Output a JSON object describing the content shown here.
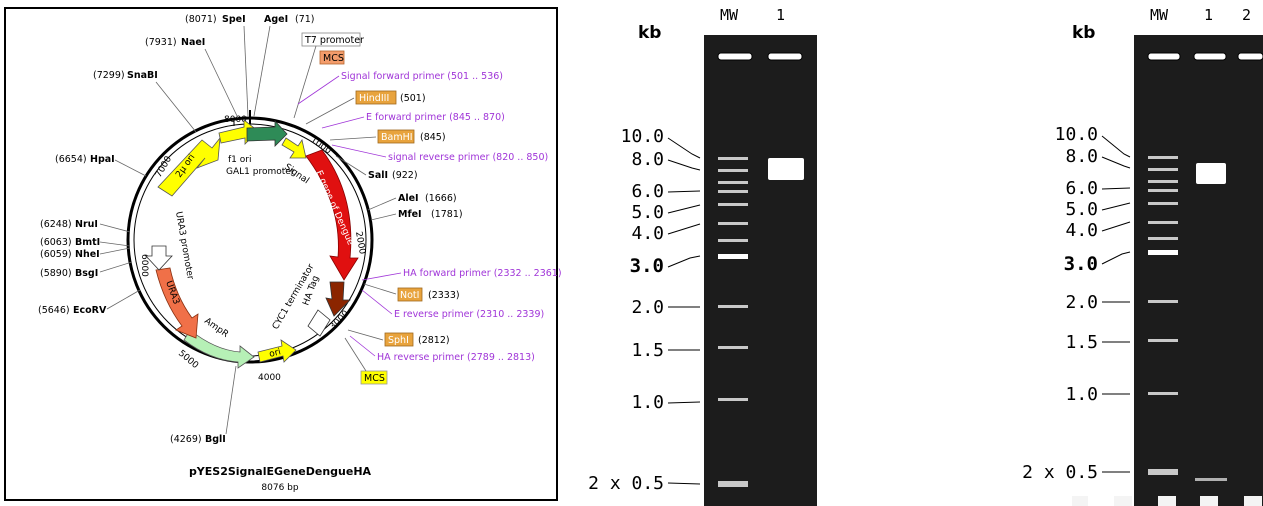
{
  "plasmid": {
    "name": "pYES2SignalEGeneDengueHA",
    "size": "8076 bp",
    "ticks": [
      "8000",
      "1000",
      "2000",
      "3000",
      "4000",
      "5000",
      "6000",
      "7000"
    ],
    "sites": [
      {
        "pos": "(8071)",
        "name": "SpeI"
      },
      {
        "pos": "(71)",
        "name": "AgeI"
      },
      {
        "pos": "(7931)",
        "name": "NaeI"
      },
      {
        "pos": "(7299)",
        "name": "SnaBI"
      },
      {
        "pos": "(6654)",
        "name": "HpaI"
      },
      {
        "pos": "(6248)",
        "name": "NruI"
      },
      {
        "pos": "(6063)",
        "name": "BmtI"
      },
      {
        "pos": "(6059)",
        "name": "NheI"
      },
      {
        "pos": "(5890)",
        "name": "BsgI"
      },
      {
        "pos": "(5646)",
        "name": "EcoRV"
      },
      {
        "pos": "(4269)",
        "name": "BglI"
      },
      {
        "name": "SalI",
        "pos": "(922)"
      },
      {
        "name": "AleI",
        "pos": "(1666)"
      },
      {
        "name": "MfeI",
        "pos": "(1781)"
      }
    ],
    "boxed_sites": [
      {
        "name": "HindIII",
        "pos": "(501)"
      },
      {
        "name": "BamHI",
        "pos": "(845)"
      },
      {
        "name": "NotI",
        "pos": "(2333)"
      },
      {
        "name": "SphI",
        "pos": "(2812)"
      }
    ],
    "tags": {
      "t7": "T7 promoter",
      "mcs1": "MCS",
      "mcs2": "MCS"
    },
    "primers": [
      "Signal forward primer  (501 .. 536)",
      "E forward primer  (845 .. 870)",
      "signal reverse primer  (820 .. 850)",
      "HA forward primer  (2332 .. 2361)",
      "E reverse primer  (2310 .. 2339)",
      "HA reverse primer  (2789 .. 2813)"
    ],
    "features": {
      "f1_ori": "f1 ori",
      "gal1": "GAL1 promoter",
      "signal": "Signal",
      "e_gene": "E gene of Dengue",
      "ha_tag": "HA Tag",
      "cyc1": "CYC1 terminator",
      "ura3_promoter": "URA3 promoter",
      "ura3": "URA3",
      "ampr": "AmpR",
      "ori": "ori",
      "two_mu": "2μ ori"
    }
  },
  "gel1": {
    "unit": "kb",
    "lanes": [
      "MW",
      "1"
    ],
    "markers": [
      "10.0",
      "8.0",
      "6.0",
      "5.0",
      "4.0",
      "3.0",
      "2.0",
      "1.5",
      "1.0",
      "2 x 0.5"
    ]
  },
  "gel2": {
    "unit": "kb",
    "lanes": [
      "MW",
      "1",
      "2"
    ],
    "markers": [
      "10.0",
      "8.0",
      "6.0",
      "5.0",
      "4.0",
      "3.0",
      "2.0",
      "1.5",
      "1.0",
      "2 x 0.5"
    ]
  },
  "colors": {
    "gel": "#1c1c1c",
    "primer": "#a035d8",
    "e_gene": "#e01010",
    "ura3": "#f07048",
    "ampr": "#b6f0b6",
    "f1_ori": "#2e8b57",
    "yellow": "#ffff00",
    "ha_tag": "#8b2500",
    "site_box": "#e8a33d"
  }
}
